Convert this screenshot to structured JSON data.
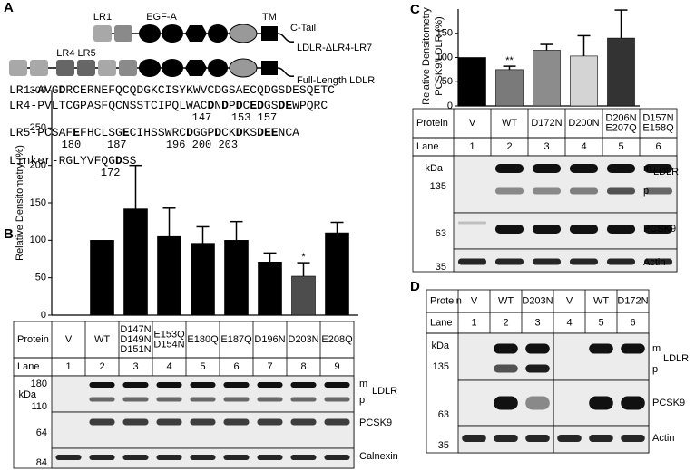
{
  "panel_labels": [
    "A",
    "B",
    "C",
    "D"
  ],
  "panel_a": {
    "constructs": [
      {
        "name": "LDLR-ΔLR4-LR7",
        "domain_labels": [
          "LR1",
          "EGF-A",
          "TM"
        ],
        "tail_label": "C-Tail"
      },
      {
        "name": "Full-Length LDLR",
        "domain_labels": [
          "LR4 LR5"
        ]
      }
    ],
    "sequences": [
      {
        "segments": [
          "LR1-AVG",
          "D",
          "RCERNEFQCQDGKCISYKWVCDGSAECQDGSDESQETC"
        ]
      },
      {
        "segments": [
          "LR4-PVLTCGPASFQCNSSTCIPQLWAC",
          "D",
          "N",
          "D",
          "P",
          "D",
          "C",
          "ED",
          "GS",
          "DE",
          "WPQRC"
        ],
        "numbering": "                            147   153 157"
      },
      {
        "segments": [
          "LR5-PCSAF",
          "E",
          "FHCLSG",
          "E",
          "CIHSSWRC",
          "D",
          "GGP",
          "D",
          "CK",
          "D",
          "KS",
          "DEE",
          "NCA"
        ],
        "numbering": "        180    187      196 200 203"
      },
      {
        "segments": [
          "Linker-RGLYVFQG",
          "D",
          "SS"
        ],
        "numbering": "              172"
      }
    ]
  },
  "chart_data": [
    {
      "type": "bar",
      "ylabel": [
        "Relative Densitometry (%)"
      ],
      "categories": [
        null,
        null,
        null,
        null,
        null,
        null,
        null,
        null,
        null
      ],
      "values": [
        null,
        100,
        142,
        105,
        96,
        100,
        71,
        52,
        110
      ],
      "errors": [
        null,
        null,
        58,
        38,
        22,
        25,
        12,
        18,
        14
      ],
      "colors": [
        "#000000",
        "#000000",
        "#000000",
        "#000000",
        "#000000",
        "#000000",
        "#000000",
        "#4d4d4d",
        "#000000"
      ],
      "annotations": [
        {
          "text": "*",
          "category": 7
        }
      ],
      "ylim": [
        0,
        300
      ],
      "yticks": [
        0,
        50,
        100,
        150,
        200,
        250,
        300
      ]
    },
    {
      "type": "bar",
      "ylabel": [
        "Relative Densitometry",
        "PCSK9/LDLR (%)"
      ],
      "categories": [
        null,
        null,
        null,
        null,
        null
      ],
      "values": [
        100,
        75,
        115,
        103,
        140
      ],
      "errors": [
        null,
        7,
        12,
        42,
        58
      ],
      "colors": [
        "#000000",
        "#7a7a7a",
        "#8c8c8c",
        "#d4d4d4",
        "#333333"
      ],
      "annotations": [
        {
          "text": "**",
          "category": 1
        }
      ],
      "ylim": [
        0,
        200
      ],
      "yticks": [
        0,
        50,
        100,
        150
      ]
    }
  ],
  "panel_b": {
    "table": [
      [
        "Protein",
        "V",
        "WT",
        [
          "D147N",
          "D149N",
          "D151N"
        ],
        [
          "E153Q",
          "D154N"
        ],
        "E180Q",
        "E187Q",
        "D196N",
        "D203N",
        "E208Q"
      ],
      [
        "Lane",
        1,
        2,
        3,
        4,
        5,
        6,
        7,
        8,
        9
      ]
    ],
    "left_labels": [
      "180",
      "kDa",
      "110",
      "64",
      "84"
    ],
    "right_labels": [
      "m",
      "LDLR",
      "p",
      "PCSK9",
      "Calnexin"
    ]
  },
  "panel_c": {
    "table": [
      [
        "Protein",
        "V",
        "WT",
        "D172N",
        "D200N",
        [
          "D206N",
          "E207Q"
        ],
        [
          "D157N",
          "E158Q"
        ]
      ],
      [
        "Lane",
        1,
        2,
        3,
        4,
        5,
        6
      ]
    ],
    "left_labels": [
      "kDa",
      "135",
      "63",
      "35"
    ],
    "right_labels": [
      "m",
      "LDLR",
      "p",
      "PCSK9",
      "Actin"
    ]
  },
  "panel_d": {
    "table": [
      [
        "Protein",
        "V",
        "WT",
        "D203N",
        "V",
        "WT",
        "D172N"
      ],
      [
        "Lane",
        1,
        2,
        3,
        4,
        5,
        6
      ]
    ],
    "left_labels": [
      "kDa",
      "135",
      "63",
      "35"
    ],
    "right_labels": [
      "m",
      "LDLR",
      "p",
      "PCSK9",
      "Actin"
    ]
  }
}
